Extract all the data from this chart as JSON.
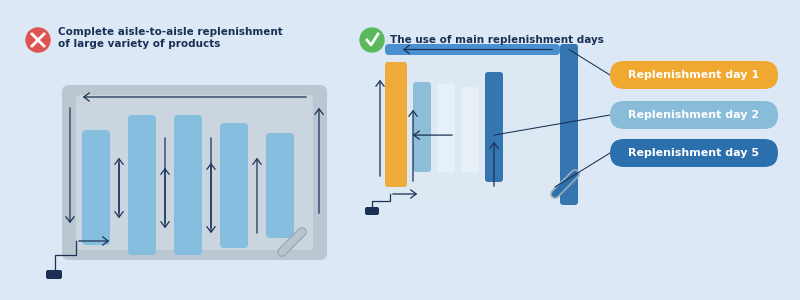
{
  "bg_color": "#dce8f5",
  "title_left_line1": "Complete aisle-to-aisle replenishment",
  "title_left_line2": "of large variety of products",
  "title_right": "The use of main replenishment days",
  "title_color": "#1a3055",
  "title_fontsize": 7.5,
  "cross_color": "#e05252",
  "check_color": "#5cb85c",
  "store_frame_left": "#b8c4cc",
  "store_inner_left": "#c8d6e0",
  "aisle_color_left": "#7abbe0",
  "aisle_color_right_orange": "#f0a830",
  "aisle_color_right_lightblue": "#88bcd8",
  "aisle_color_right_white": "#e8f0f8",
  "aisle_color_right_darkblue": "#2c6fad",
  "blue_bar_color": "#4a90d0",
  "arrow_color": "#1a3055",
  "label_day1_color": "#f0a830",
  "label_day2_color": "#88bcd8",
  "label_day5_color": "#2c6fad",
  "label_text_color": "#ffffff",
  "replenishment_labels": [
    "Replenishment day 1",
    "Replenishment day 2",
    "Replenishment day 5"
  ],
  "scanner_color": "#9aabb8",
  "dock_color": "#1a3055"
}
